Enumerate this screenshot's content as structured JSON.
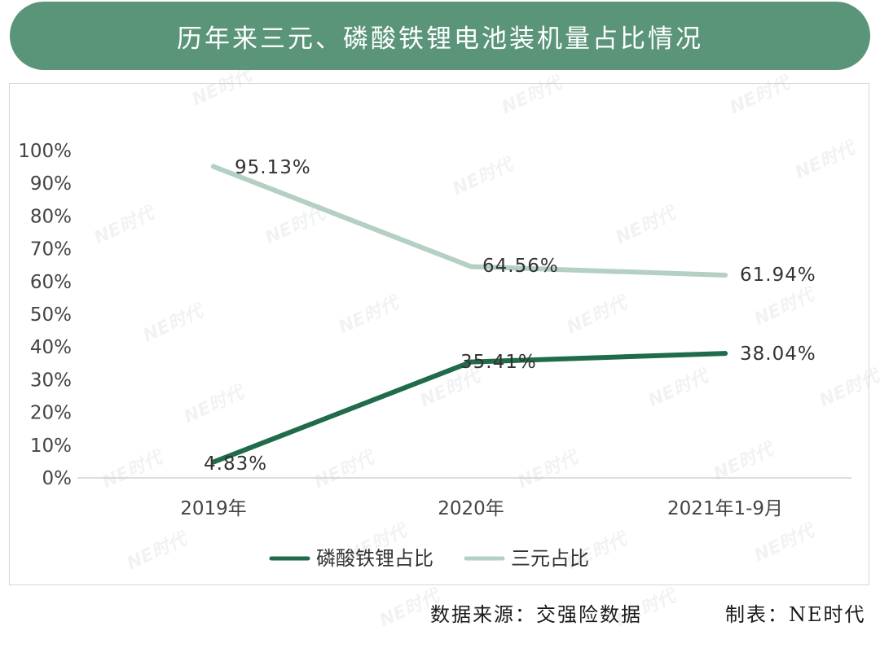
{
  "title": "历年来三元、磷酸铁锂电池装机量占比情况",
  "footer": {
    "source": "数据来源：交强险数据",
    "maker": "制表：NE时代"
  },
  "watermark": "NE时代",
  "colors": {
    "banner": "#5a9479",
    "lfp": "#1f6b4a",
    "ternary": "#b4d0c2"
  },
  "chart_data": {
    "type": "line",
    "categories": [
      "2019年",
      "2020年",
      "2021年1-9月"
    ],
    "series": [
      {
        "name": "磷酸铁锂占比",
        "values": [
          4.83,
          35.41,
          38.04
        ],
        "labels": [
          "4.83%",
          "35.41%",
          "38.04%"
        ]
      },
      {
        "name": "三元占比",
        "values": [
          95.13,
          64.56,
          61.94
        ],
        "labels": [
          "95.13%",
          "64.56%",
          "61.94%"
        ]
      }
    ],
    "y_ticks": [
      "0%",
      "10%",
      "20%",
      "30%",
      "40%",
      "50%",
      "60%",
      "70%",
      "80%",
      "90%",
      "100%"
    ],
    "ylim": [
      0,
      100
    ],
    "grid": false,
    "legend_position": "bottom"
  }
}
